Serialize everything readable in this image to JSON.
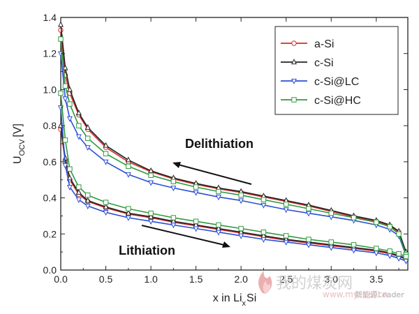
{
  "chart_data": {
    "type": "line",
    "xlabel": "x in Li",
    "xlabel_sub": "x",
    "xlabel_tail": "Si",
    "ylabel": "U",
    "ylabel_sub": "OCV",
    "ylabel_unit": "[V]",
    "xlim": [
      0.0,
      3.85
    ],
    "ylim": [
      0.0,
      1.4
    ],
    "xticks": [
      "0.0",
      "0.5",
      "1.0",
      "1.5",
      "2.0",
      "2.5",
      "3.0",
      "3.5"
    ],
    "yticks": [
      "0.0",
      "0.2",
      "0.4",
      "0.6",
      "0.8",
      "1.0",
      "1.2",
      "1.4"
    ],
    "grid": false,
    "legend_position": "top-right",
    "annotations": [
      "Delithiation",
      "Lithiation"
    ],
    "series": [
      {
        "name": "a-Si",
        "color": "#d42a2a",
        "marker": "circle",
        "delithiation": [
          [
            0.0,
            1.33
          ],
          [
            0.05,
            1.08
          ],
          [
            0.1,
            0.98
          ],
          [
            0.2,
            0.86
          ],
          [
            0.3,
            0.78
          ],
          [
            0.5,
            0.68
          ],
          [
            0.75,
            0.6
          ],
          [
            1.0,
            0.545
          ],
          [
            1.25,
            0.505
          ],
          [
            1.5,
            0.475
          ],
          [
            1.75,
            0.45
          ],
          [
            2.0,
            0.43
          ],
          [
            2.25,
            0.405
          ],
          [
            2.5,
            0.38
          ],
          [
            2.75,
            0.355
          ],
          [
            3.0,
            0.325
          ],
          [
            3.25,
            0.295
          ],
          [
            3.5,
            0.27
          ],
          [
            3.65,
            0.245
          ],
          [
            3.75,
            0.21
          ],
          [
            3.83,
            0.09
          ]
        ],
        "lithiation": [
          [
            0.0,
            0.78
          ],
          [
            0.05,
            0.6
          ],
          [
            0.1,
            0.5
          ],
          [
            0.2,
            0.42
          ],
          [
            0.3,
            0.38
          ],
          [
            0.5,
            0.345
          ],
          [
            0.75,
            0.31
          ],
          [
            1.0,
            0.29
          ],
          [
            1.25,
            0.265
          ],
          [
            1.5,
            0.245
          ],
          [
            1.75,
            0.225
          ],
          [
            2.0,
            0.205
          ],
          [
            2.25,
            0.185
          ],
          [
            2.5,
            0.165
          ],
          [
            2.75,
            0.15
          ],
          [
            3.0,
            0.135
          ],
          [
            3.25,
            0.12
          ],
          [
            3.5,
            0.105
          ],
          [
            3.65,
            0.09
          ],
          [
            3.75,
            0.075
          ],
          [
            3.83,
            0.06
          ]
        ]
      },
      {
        "name": "c-Si",
        "color": "#222222",
        "marker": "triangle-up",
        "delithiation": [
          [
            0.0,
            1.36
          ],
          [
            0.05,
            1.12
          ],
          [
            0.1,
            1.0
          ],
          [
            0.2,
            0.87
          ],
          [
            0.3,
            0.79
          ],
          [
            0.5,
            0.69
          ],
          [
            0.75,
            0.61
          ],
          [
            1.0,
            0.55
          ],
          [
            1.25,
            0.51
          ],
          [
            1.5,
            0.48
          ],
          [
            1.75,
            0.455
          ],
          [
            2.0,
            0.435
          ],
          [
            2.25,
            0.41
          ],
          [
            2.5,
            0.385
          ],
          [
            2.75,
            0.36
          ],
          [
            3.0,
            0.33
          ],
          [
            3.25,
            0.3
          ],
          [
            3.5,
            0.275
          ],
          [
            3.65,
            0.25
          ],
          [
            3.75,
            0.215
          ],
          [
            3.83,
            0.1
          ]
        ],
        "lithiation": [
          [
            0.0,
            0.8
          ],
          [
            0.05,
            0.62
          ],
          [
            0.1,
            0.51
          ],
          [
            0.2,
            0.43
          ],
          [
            0.3,
            0.385
          ],
          [
            0.5,
            0.35
          ],
          [
            0.75,
            0.315
          ],
          [
            1.0,
            0.295
          ],
          [
            1.25,
            0.27
          ],
          [
            1.5,
            0.25
          ],
          [
            1.75,
            0.23
          ],
          [
            2.0,
            0.21
          ],
          [
            2.25,
            0.19
          ],
          [
            2.5,
            0.17
          ],
          [
            2.75,
            0.155
          ],
          [
            3.0,
            0.14
          ],
          [
            3.25,
            0.125
          ],
          [
            3.5,
            0.11
          ],
          [
            3.65,
            0.095
          ],
          [
            3.75,
            0.08
          ],
          [
            3.83,
            0.065
          ]
        ]
      },
      {
        "name": "c-Si@LC",
        "color": "#2a4fd4",
        "marker": "triangle-down",
        "delithiation": [
          [
            0.0,
            1.2
          ],
          [
            0.05,
            0.95
          ],
          [
            0.1,
            0.84
          ],
          [
            0.2,
            0.74
          ],
          [
            0.3,
            0.68
          ],
          [
            0.5,
            0.6
          ],
          [
            0.75,
            0.53
          ],
          [
            1.0,
            0.485
          ],
          [
            1.25,
            0.455
          ],
          [
            1.5,
            0.43
          ],
          [
            1.75,
            0.405
          ],
          [
            2.0,
            0.385
          ],
          [
            2.25,
            0.36
          ],
          [
            2.5,
            0.335
          ],
          [
            2.75,
            0.315
          ],
          [
            3.0,
            0.295
          ],
          [
            3.25,
            0.275
          ],
          [
            3.5,
            0.25
          ],
          [
            3.65,
            0.225
          ],
          [
            3.75,
            0.19
          ],
          [
            3.83,
            0.08
          ]
        ],
        "lithiation": [
          [
            0.0,
            0.9
          ],
          [
            0.05,
            0.58
          ],
          [
            0.1,
            0.46
          ],
          [
            0.2,
            0.39
          ],
          [
            0.3,
            0.355
          ],
          [
            0.5,
            0.32
          ],
          [
            0.75,
            0.29
          ],
          [
            1.0,
            0.27
          ],
          [
            1.25,
            0.25
          ],
          [
            1.5,
            0.23
          ],
          [
            1.75,
            0.21
          ],
          [
            2.0,
            0.19
          ],
          [
            2.25,
            0.17
          ],
          [
            2.5,
            0.155
          ],
          [
            2.75,
            0.14
          ],
          [
            3.0,
            0.125
          ],
          [
            3.25,
            0.11
          ],
          [
            3.5,
            0.095
          ],
          [
            3.65,
            0.08
          ],
          [
            3.75,
            0.065
          ],
          [
            3.83,
            0.05
          ]
        ]
      },
      {
        "name": "c-Si@HC",
        "color": "#2e9a3e",
        "marker": "square",
        "delithiation": [
          [
            0.0,
            1.28
          ],
          [
            0.05,
            1.02
          ],
          [
            0.1,
            0.92
          ],
          [
            0.2,
            0.8
          ],
          [
            0.3,
            0.73
          ],
          [
            0.5,
            0.645
          ],
          [
            0.75,
            0.575
          ],
          [
            1.0,
            0.525
          ],
          [
            1.25,
            0.49
          ],
          [
            1.5,
            0.46
          ],
          [
            1.75,
            0.435
          ],
          [
            2.0,
            0.415
          ],
          [
            2.25,
            0.39
          ],
          [
            2.5,
            0.365
          ],
          [
            2.75,
            0.34
          ],
          [
            3.0,
            0.315
          ],
          [
            3.25,
            0.29
          ],
          [
            3.5,
            0.265
          ],
          [
            3.65,
            0.24
          ],
          [
            3.75,
            0.2
          ],
          [
            3.83,
            0.085
          ]
        ],
        "lithiation": [
          [
            0.0,
            0.98
          ],
          [
            0.05,
            0.72
          ],
          [
            0.1,
            0.56
          ],
          [
            0.2,
            0.46
          ],
          [
            0.3,
            0.415
          ],
          [
            0.5,
            0.375
          ],
          [
            0.75,
            0.34
          ],
          [
            1.0,
            0.315
          ],
          [
            1.25,
            0.29
          ],
          [
            1.5,
            0.27
          ],
          [
            1.75,
            0.25
          ],
          [
            2.0,
            0.23
          ],
          [
            2.25,
            0.21
          ],
          [
            2.5,
            0.19
          ],
          [
            2.75,
            0.17
          ],
          [
            3.0,
            0.155
          ],
          [
            3.25,
            0.14
          ],
          [
            3.5,
            0.12
          ],
          [
            3.65,
            0.105
          ],
          [
            3.75,
            0.09
          ],
          [
            3.83,
            0.075
          ]
        ]
      }
    ]
  },
  "watermark": {
    "logo_text": "我的煤炭网",
    "brand_text": "新能源Leader",
    "url_text": "www.mycoal.cn"
  }
}
